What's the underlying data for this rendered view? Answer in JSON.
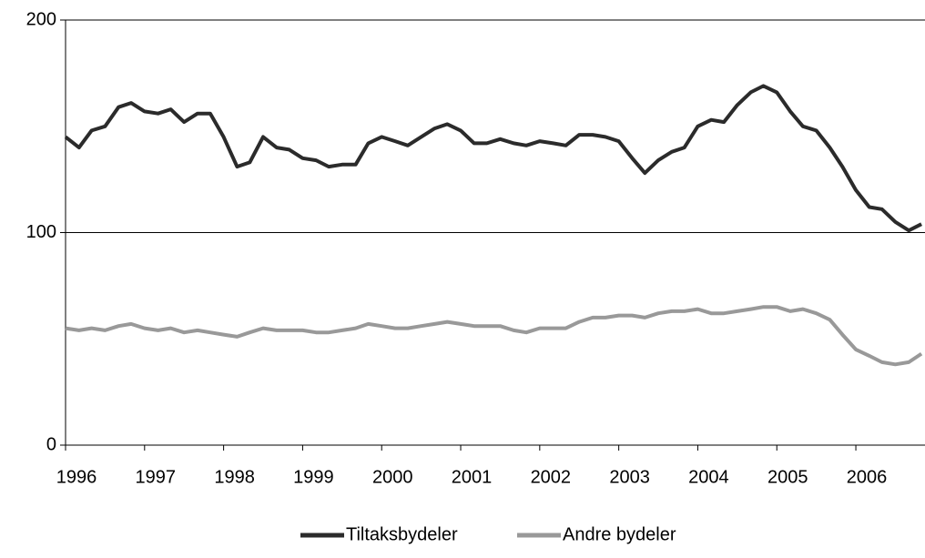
{
  "chart_data": {
    "type": "line",
    "x": [
      1996.0,
      1996.17,
      1996.33,
      1996.5,
      1996.67,
      1996.83,
      1997.0,
      1997.17,
      1997.33,
      1997.5,
      1997.67,
      1997.83,
      1998.0,
      1998.17,
      1998.33,
      1998.5,
      1998.67,
      1998.83,
      1999.0,
      1999.17,
      1999.33,
      1999.5,
      1999.67,
      1999.83,
      2000.0,
      2000.17,
      2000.33,
      2000.5,
      2000.67,
      2000.83,
      2001.0,
      2001.17,
      2001.33,
      2001.5,
      2001.67,
      2001.83,
      2002.0,
      2002.17,
      2002.33,
      2002.5,
      2002.67,
      2002.83,
      2003.0,
      2003.17,
      2003.33,
      2003.5,
      2003.67,
      2003.83,
      2004.0,
      2004.17,
      2004.33,
      2004.5,
      2004.67,
      2004.83,
      2005.0,
      2005.17,
      2005.33,
      2005.5,
      2005.67,
      2005.83,
      2006.0,
      2006.17,
      2006.33,
      2006.5,
      2006.67,
      2006.83
    ],
    "series": [
      {
        "name": "Tiltaksbydeler",
        "color": "#2b2b2b",
        "values": [
          145,
          140,
          148,
          150,
          159,
          161,
          157,
          156,
          158,
          152,
          156,
          156,
          145,
          131,
          133,
          145,
          140,
          139,
          135,
          134,
          131,
          132,
          132,
          142,
          145,
          143,
          141,
          145,
          149,
          151,
          148,
          142,
          142,
          144,
          142,
          141,
          143,
          142,
          141,
          146,
          146,
          145,
          143,
          135,
          128,
          134,
          138,
          140,
          150,
          153,
          152,
          160,
          166,
          169,
          166,
          157,
          150,
          148,
          140,
          131,
          120,
          112,
          111,
          105,
          101,
          104
        ]
      },
      {
        "name": "Andre bydeler",
        "color": "#999999",
        "values": [
          55,
          54,
          55,
          54,
          56,
          57,
          55,
          54,
          55,
          53,
          54,
          53,
          52,
          51,
          53,
          55,
          54,
          54,
          54,
          53,
          53,
          54,
          55,
          57,
          56,
          55,
          55,
          56,
          57,
          58,
          57,
          56,
          56,
          56,
          54,
          53,
          55,
          55,
          55,
          58,
          60,
          60,
          61,
          61,
          60,
          62,
          63,
          63,
          64,
          62,
          62,
          63,
          64,
          65,
          65,
          63,
          64,
          62,
          59,
          52,
          45,
          42,
          39,
          38,
          39,
          43
        ]
      }
    ],
    "xlim": [
      1996,
      2006.875
    ],
    "xticks": [
      1996,
      1997,
      1998,
      1999,
      2000,
      2001,
      2002,
      2003,
      2004,
      2005,
      2006
    ],
    "ylim": [
      0,
      200
    ],
    "yticks": [
      0,
      100,
      200
    ],
    "grid": true,
    "legend": "bottom"
  }
}
